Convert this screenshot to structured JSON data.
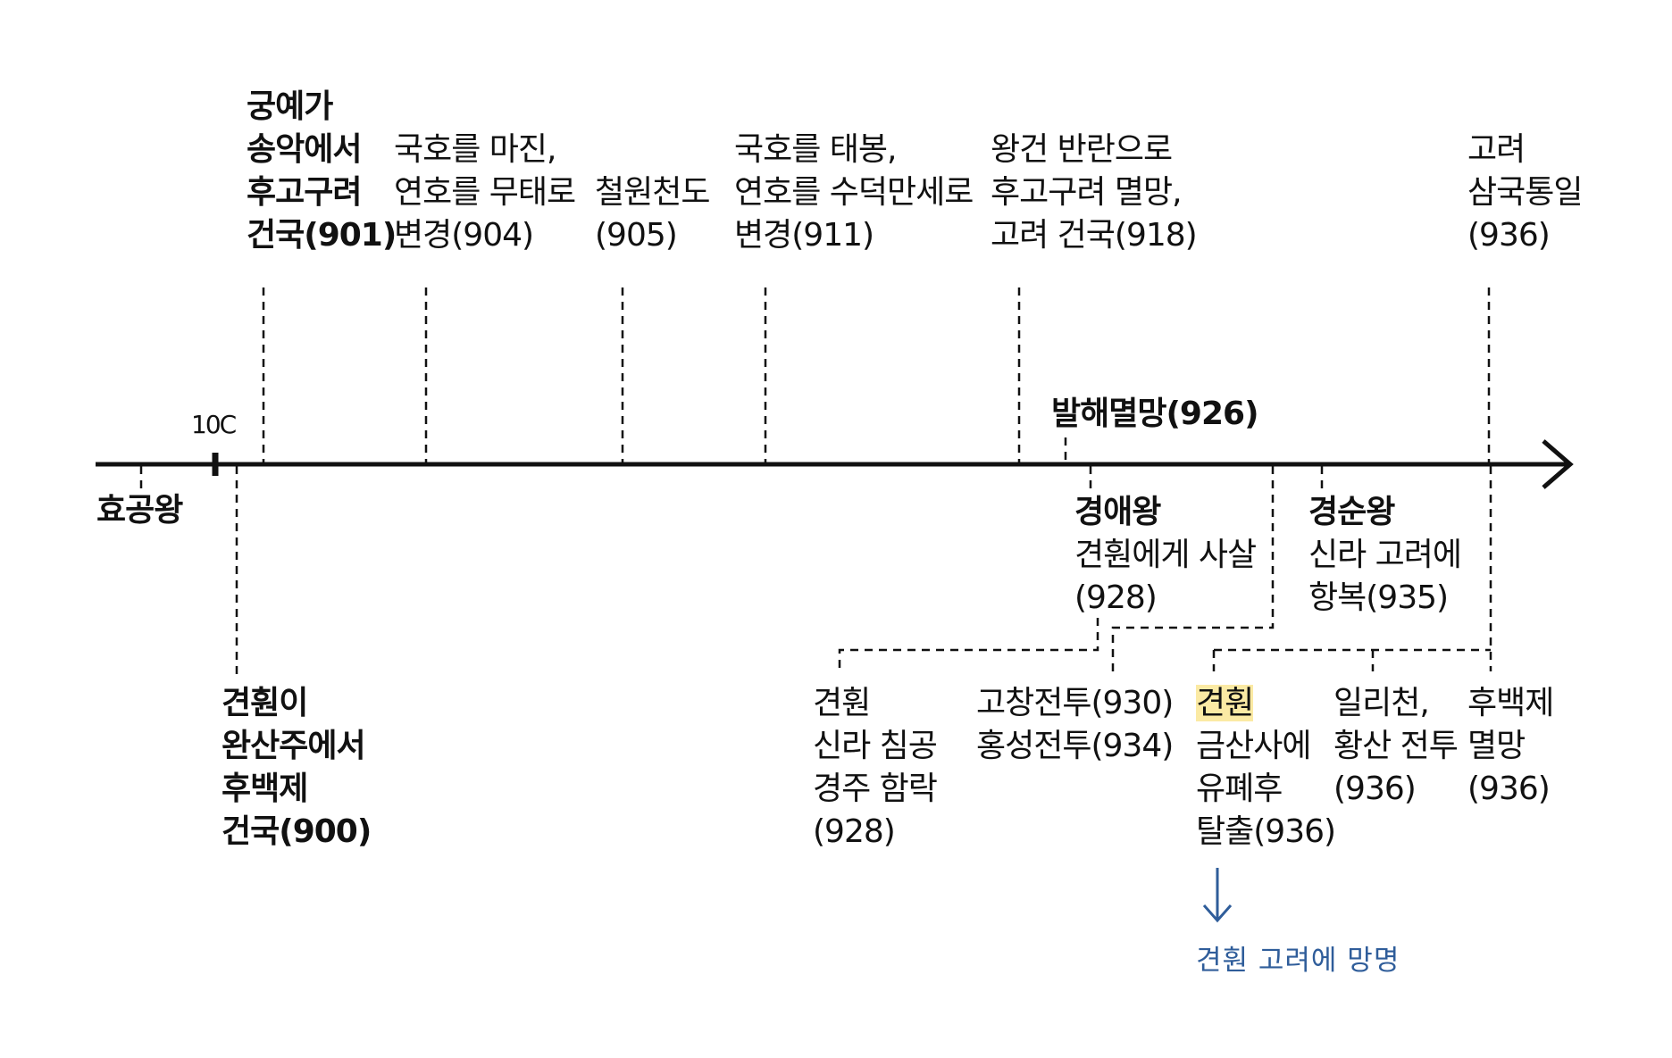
{
  "axis": {
    "century_label": "10C"
  },
  "events_above": [
    {
      "lines": [
        "궁예가",
        "송악에서",
        "후고구려",
        "건국(901)"
      ],
      "bold": true
    },
    {
      "lines": [
        "국호를 마진,",
        "연호를 무태로",
        "변경(904)"
      ],
      "bold": false
    },
    {
      "lines": [
        "철원천도",
        "(905)"
      ],
      "bold": false
    },
    {
      "lines": [
        "국호를 태봉,",
        "연호를 수덕만세로",
        "변경(911)"
      ],
      "bold": false
    },
    {
      "lines": [
        "왕건 반란으로",
        "후고구려 멸망,",
        "고려 건국(918)"
      ],
      "bold": false
    },
    {
      "lines": [
        "고려",
        "삼국통일",
        "(936)"
      ],
      "bold": false
    }
  ],
  "balhae": {
    "text": "발해멸망(926)"
  },
  "kings": [
    {
      "name": "효공왕"
    },
    {
      "name": "경애왕",
      "lines": [
        "견훤에게 사살",
        "(928)"
      ]
    },
    {
      "name": "경순왕",
      "lines": [
        "신라 고려에",
        "항복(935)"
      ]
    }
  ],
  "events_below": [
    {
      "lines": [
        "견훤이",
        "완산주에서",
        "후백제",
        "건국(900)"
      ],
      "bold": true
    },
    {
      "lines": [
        "견훤",
        "신라 침공",
        "경주 함락",
        "(928)"
      ],
      "bold": false
    },
    {
      "lines": [
        "고창전투(930)",
        "홍성전투(934)"
      ],
      "bold": false
    },
    {
      "highlight": "견훤",
      "lines": [
        "금산사에",
        "유폐후",
        "탈출(936)"
      ],
      "bold": false
    },
    {
      "lines": [
        "일리천,",
        "황산 전투",
        "(936)"
      ],
      "bold": false
    },
    {
      "lines": [
        "후백제",
        "멸망",
        "(936)"
      ],
      "bold": false
    }
  ],
  "footnote": {
    "text": "견훤 고려에 망명"
  },
  "colors": {
    "line": "#111111",
    "highlight": "#fbeaa4",
    "footnote": "#2f5d9a"
  }
}
